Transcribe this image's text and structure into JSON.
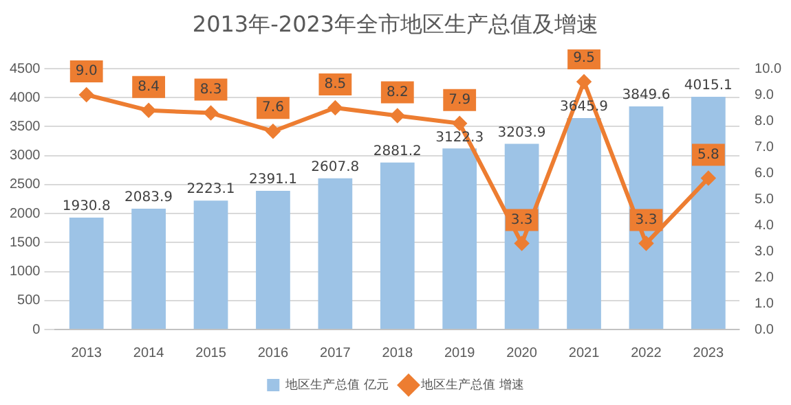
{
  "chart_data": {
    "type": "bar",
    "title": "2013年-2023年全市地区生产总值及增速",
    "categories": [
      "2013",
      "2014",
      "2015",
      "2016",
      "2017",
      "2018",
      "2019",
      "2020",
      "2021",
      "2022",
      "2023"
    ],
    "series": [
      {
        "name": "地区生产总值 亿元",
        "color": "#9dc3e6",
        "values": [
          1930.8,
          2083.9,
          2223.1,
          2391.1,
          2607.8,
          2881.2,
          3122.3,
          3203.9,
          3645.9,
          3849.6,
          4015.1
        ]
      },
      {
        "name": "地区生产总值 增速",
        "type": "line",
        "axis": "y2",
        "color": "#ed7d31",
        "marker": "diamond",
        "values": [
          9.0,
          8.4,
          8.3,
          7.6,
          8.5,
          8.2,
          7.9,
          3.3,
          9.5,
          3.3,
          5.8
        ],
        "value_labels": [
          "9.0",
          "8.4",
          "8.3",
          "7.6",
          "8.5",
          "8.2",
          "7.9",
          "3.3",
          "9.5",
          "3.3",
          "5.8"
        ]
      }
    ],
    "data_labels": true,
    "ylim": [
      0,
      4500
    ],
    "yticks": [
      0,
      500,
      1000,
      1500,
      2000,
      2500,
      3000,
      3500,
      4000,
      4500
    ],
    "y2lim": [
      0,
      10
    ],
    "y2ticks": [
      {
        "value": 0,
        "label": "0.0"
      },
      {
        "value": 1,
        "label": "1.0"
      },
      {
        "value": 2,
        "label": "2.0"
      },
      {
        "value": 3,
        "label": "3.0"
      },
      {
        "value": 4,
        "label": "4.0"
      },
      {
        "value": 5,
        "label": "5.0"
      },
      {
        "value": 6,
        "label": "6.0"
      },
      {
        "value": 7,
        "label": "7.0"
      },
      {
        "value": 8,
        "label": "8.0"
      },
      {
        "value": 9,
        "label": "9.0"
      },
      {
        "value": 10,
        "label": "10.0"
      }
    ],
    "grid": "y",
    "legend": "bottom"
  }
}
